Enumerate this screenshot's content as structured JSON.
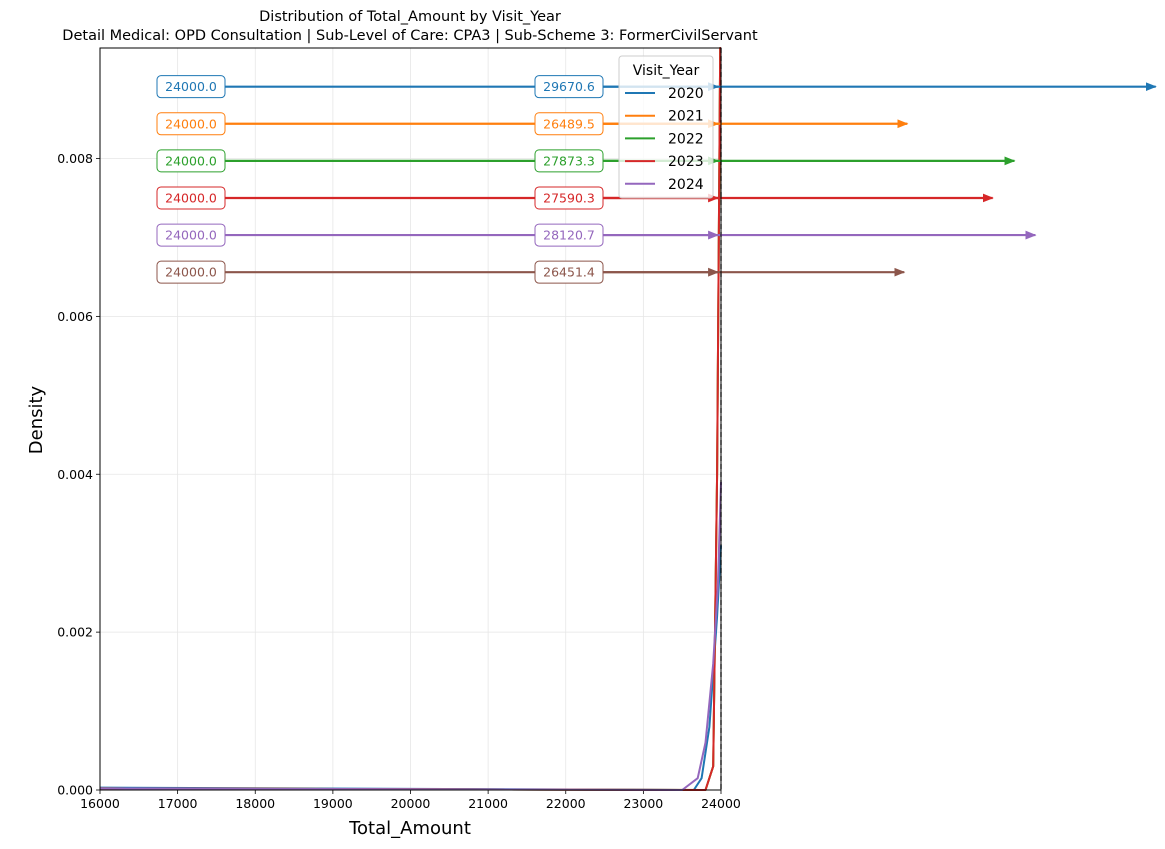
{
  "chart_data": {
    "type": "line",
    "title": "Distribution of Total_Amount by Visit_Year",
    "subtitle": "Detail Medical: OPD Consultation | Sub-Level of Care: CPA3 | Sub-Scheme 3: FormerCivilServant",
    "xlabel": "Total_Amount",
    "ylabel": "Density",
    "xlim": [
      16000,
      24000
    ],
    "ylim": [
      0,
      0.0094
    ],
    "x_ticks": [
      "16000",
      "17000",
      "18000",
      "19000",
      "20000",
      "21000",
      "22000",
      "23000",
      "24000"
    ],
    "y_ticks": [
      "0.000",
      "0.002",
      "0.004",
      "0.006",
      "0.008"
    ],
    "grid": true,
    "legend": {
      "title": "Visit_Year",
      "placement": "top-right"
    },
    "reference_line_x": 24000,
    "series": [
      {
        "name": "2020",
        "color": "#1f77b4",
        "x": [
          16000,
          23500,
          23650,
          23750,
          23850,
          23950,
          24000
        ],
        "y": [
          3e-05,
          0.0,
          0.0,
          0.00015,
          0.0008,
          0.0022,
          0.0031
        ]
      },
      {
        "name": "2021",
        "color": "#ff7f0e",
        "x": [
          16000,
          23800,
          23900,
          23950,
          23990,
          24000
        ],
        "y": [
          2e-05,
          0.0,
          0.0003,
          0.004,
          0.0094,
          0.0094
        ]
      },
      {
        "name": "2022",
        "color": "#2ca02c",
        "x": [
          16000,
          23800,
          23900,
          23950,
          23990,
          24000
        ],
        "y": [
          2e-05,
          0.0,
          0.0003,
          0.004,
          0.0094,
          0.0094
        ]
      },
      {
        "name": "2023",
        "color": "#d62728",
        "x": [
          16000,
          23800,
          23900,
          23950,
          23990,
          24000
        ],
        "y": [
          2e-05,
          0.0,
          0.0003,
          0.004,
          0.0094,
          0.0094
        ]
      },
      {
        "name": "2024",
        "color": "#9467bd",
        "x": [
          16000,
          23500,
          23700,
          23800,
          23900,
          23960,
          24000
        ],
        "y": [
          2e-05,
          0.0,
          0.00015,
          0.0006,
          0.0016,
          0.0026,
          0.0039
        ]
      }
    ],
    "annotations": [
      {
        "color": "#1f77b4",
        "label_a": "24000.0",
        "label_b": "29670.6",
        "y": 0.00891,
        "arrow_end_x": 29600
      },
      {
        "color": "#ff7f0e",
        "label_a": "24000.0",
        "label_b": "26489.5",
        "y": 0.00844,
        "arrow_end_x": 26400
      },
      {
        "color": "#2ca02c",
        "label_a": "24000.0",
        "label_b": "27873.3",
        "y": 0.00797,
        "arrow_end_x": 27780
      },
      {
        "color": "#d62728",
        "label_a": "24000.0",
        "label_b": "27590.3",
        "y": 0.0075,
        "arrow_end_x": 27500
      },
      {
        "color": "#9467bd",
        "label_a": "24000.0",
        "label_b": "28120.7",
        "y": 0.00703,
        "arrow_end_x": 28050
      },
      {
        "color": "#8c564b",
        "label_a": "24000.0",
        "label_b": "26451.4",
        "y": 0.00656,
        "arrow_end_x": 26360
      }
    ]
  }
}
